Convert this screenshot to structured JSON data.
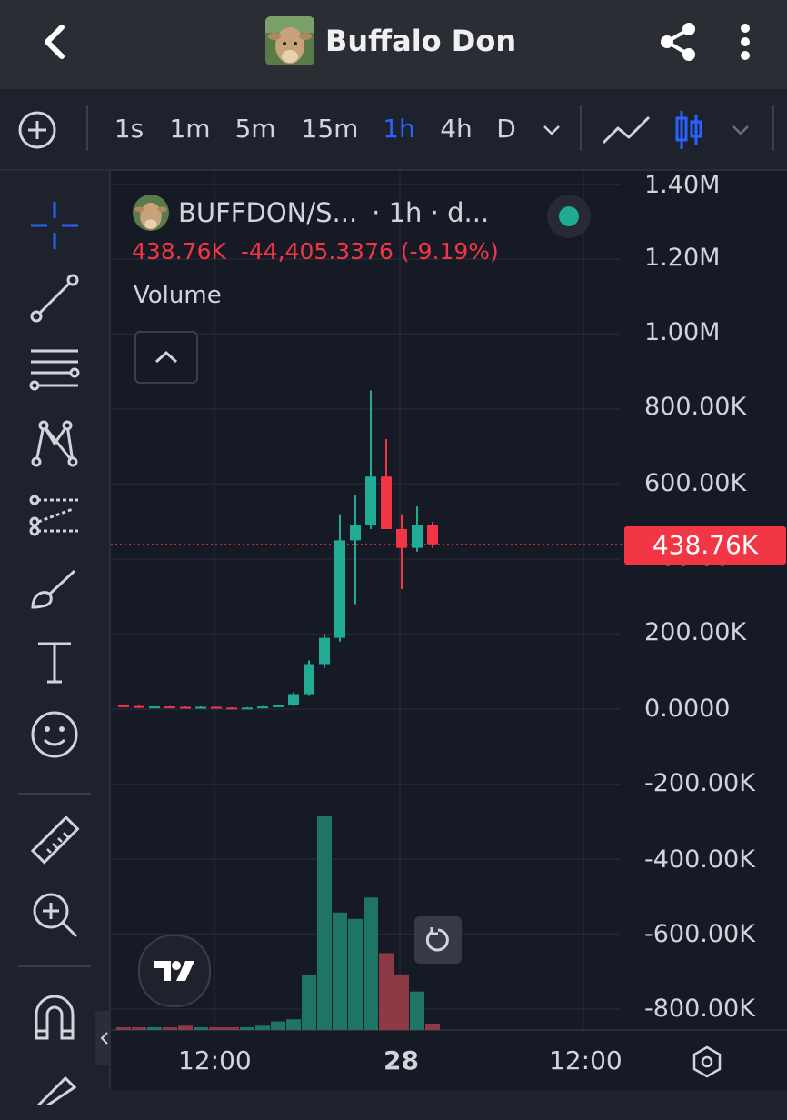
{
  "header": {
    "title": "Buffalo Don",
    "back_icon": "chevron-left-icon",
    "share_icon": "share-icon",
    "more_icon": "more-vertical-icon"
  },
  "toolbar": {
    "timeframes": [
      "1s",
      "1m",
      "5m",
      "15m",
      "1h",
      "4h",
      "D"
    ],
    "active_timeframe": "1h",
    "accent": "#2962ff"
  },
  "legend": {
    "symbol": "BUFFDON/S...",
    "interval": "· 1h · d...",
    "price": "438.76K",
    "change": "-44,405.3376 (-9.19%)",
    "indicator": "Volume"
  },
  "price_tag": "438.76K",
  "y_axis": [
    "1.40M",
    "1.20M",
    "1.00M",
    "800.00K",
    "600.00K",
    "400.00K",
    "200.00K",
    "0.0000",
    "-200.00K",
    "-400.00K",
    "-600.00K",
    "-800.00K"
  ],
  "x_axis": [
    "12:00",
    "28",
    "12:00"
  ],
  "colors": {
    "up": "#22ab94",
    "down": "#f23645",
    "bg": "#161a25"
  },
  "chart_data": {
    "type": "candlestick",
    "ylim": [
      -900000,
      1450000
    ],
    "last_price": 438760,
    "candles": [
      {
        "o": 10000,
        "h": 12000,
        "l": 7000,
        "c": 8000
      },
      {
        "o": 8000,
        "h": 10000,
        "l": 4000,
        "c": 5000
      },
      {
        "o": 6000,
        "h": 8000,
        "l": 5000,
        "c": 7000
      },
      {
        "o": 7000,
        "h": 8000,
        "l": 5000,
        "c": 6000
      },
      {
        "o": 6000,
        "h": 7000,
        "l": 4000,
        "c": 5000
      },
      {
        "o": 5000,
        "h": 7000,
        "l": 4000,
        "c": 6000
      },
      {
        "o": 6000,
        "h": 6500,
        "l": 3000,
        "c": 4000
      },
      {
        "o": 4000,
        "h": 5000,
        "l": 2000,
        "c": 3000
      },
      {
        "o": 3000,
        "h": 5000,
        "l": 2000,
        "c": 4000
      },
      {
        "o": 4000,
        "h": 8000,
        "l": 3000,
        "c": 7000
      },
      {
        "o": 7000,
        "h": 12000,
        "l": 5000,
        "c": 10000
      },
      {
        "o": 10000,
        "h": 45000,
        "l": 8000,
        "c": 40000
      },
      {
        "o": 40000,
        "h": 130000,
        "l": 35000,
        "c": 120000
      },
      {
        "o": 120000,
        "h": 200000,
        "l": 110000,
        "c": 190000
      },
      {
        "o": 190000,
        "h": 520000,
        "l": 180000,
        "c": 450000
      },
      {
        "o": 450000,
        "h": 570000,
        "l": 280000,
        "c": 490000
      },
      {
        "o": 490000,
        "h": 850000,
        "l": 480000,
        "c": 620000
      },
      {
        "o": 620000,
        "h": 720000,
        "l": 480000,
        "c": 480000
      },
      {
        "o": 480000,
        "h": 520000,
        "l": 320000,
        "c": 430000
      },
      {
        "o": 430000,
        "h": 540000,
        "l": 420000,
        "c": 490000
      },
      {
        "o": 490000,
        "h": 500000,
        "l": 430000,
        "c": 440000
      }
    ],
    "volumes": [
      0.01,
      0.01,
      0.01,
      0.01,
      0.02,
      0.01,
      0.01,
      0.01,
      0.01,
      0.02,
      0.04,
      0.05,
      0.26,
      1.0,
      0.55,
      0.52,
      0.62,
      0.36,
      0.26,
      0.18,
      0.03
    ]
  }
}
